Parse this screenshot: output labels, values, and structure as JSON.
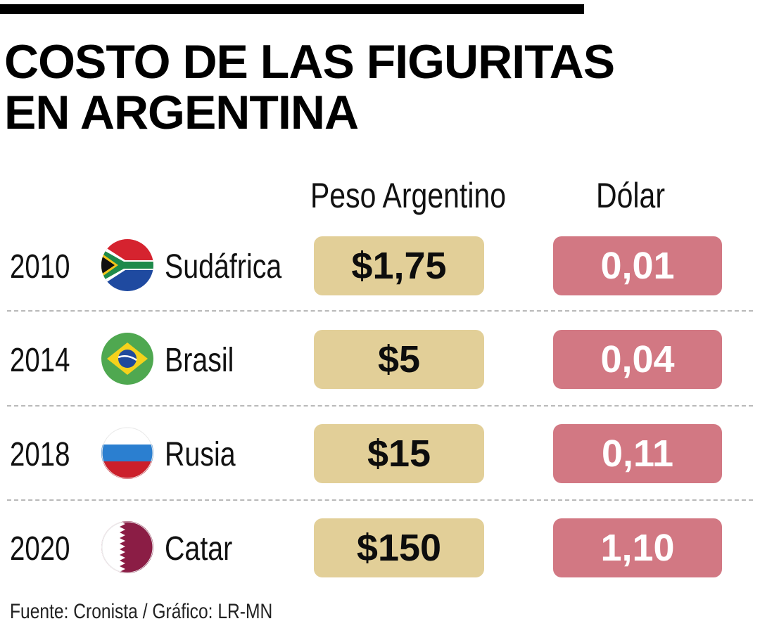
{
  "title": "COSTO DE LAS FIGURITAS EN ARGENTINA",
  "source": "Fuente: Cronista / Gráfico: LR-MN",
  "colors": {
    "peso_box": "#e2cf98",
    "dolar_box": "#d27883",
    "title": "#000000"
  },
  "chart_data": {
    "type": "table",
    "title": "COSTO DE LAS FIGURITAS EN ARGENTINA",
    "columns": [
      "Peso Argentino",
      "Dólar"
    ],
    "rows": [
      {
        "year": "2010",
        "country": "Sudáfrica",
        "flag": "south-africa-flag-icon",
        "peso": "$1,75",
        "dolar": "0,01",
        "peso_value": 1.75,
        "dolar_value": 0.01
      },
      {
        "year": "2014",
        "country": "Brasil",
        "flag": "brazil-flag-icon",
        "peso": "$5",
        "dolar": "0,04",
        "peso_value": 5,
        "dolar_value": 0.04
      },
      {
        "year": "2018",
        "country": "Rusia",
        "flag": "russia-flag-icon",
        "peso": "$15",
        "dolar": "0,11",
        "peso_value": 15,
        "dolar_value": 0.11
      },
      {
        "year": "2020",
        "country": "Catar",
        "flag": "qatar-flag-icon",
        "peso": "$150",
        "dolar": "1,10",
        "peso_value": 150,
        "dolar_value": 1.1
      }
    ]
  }
}
